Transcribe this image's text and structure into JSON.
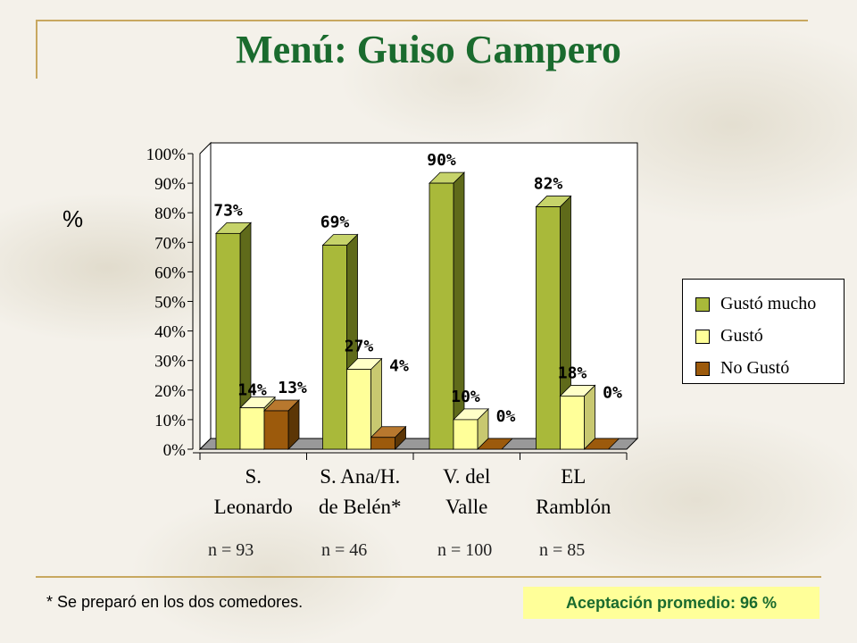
{
  "slide": {
    "title": "Menú: Guiso Campero",
    "ylabel": "%",
    "footnote": "* Se preparó en los dos comedores.",
    "average": "Aceptación promedio: 96 %"
  },
  "colors": {
    "gusto_mucho": "#a9b93a",
    "gusto": "#ffff99",
    "no_gusto": "#9c5a0c",
    "title": "#1a6b2e",
    "accent_line": "#c8a860"
  },
  "chart_data": {
    "type": "bar",
    "title": "",
    "ylabel": "%",
    "ylim": [
      0,
      100
    ],
    "yticks": [
      "0%",
      "10%",
      "20%",
      "30%",
      "40%",
      "50%",
      "60%",
      "70%",
      "80%",
      "90%",
      "100%"
    ],
    "categories": [
      [
        "S.",
        "Leonardo"
      ],
      [
        "S. Ana/H.",
        "de Belén*"
      ],
      [
        "V. del",
        "Valle"
      ],
      [
        "EL",
        "Ramblón"
      ]
    ],
    "n_labels": [
      "n = 93",
      "n = 46",
      "n = 100",
      "n = 85"
    ],
    "series": [
      {
        "name": "Gustó mucho",
        "values": [
          73,
          69,
          90,
          82
        ],
        "labels": [
          "73%",
          "69%",
          "90%",
          "82%"
        ]
      },
      {
        "name": "Gustó",
        "values": [
          14,
          27,
          10,
          18
        ],
        "labels": [
          "14%",
          "27%",
          "10%",
          "18%"
        ]
      },
      {
        "name": "No Gustó",
        "values": [
          13,
          4,
          0,
          0
        ],
        "labels": [
          "13%",
          "4%",
          "0%",
          "0%"
        ]
      }
    ],
    "legend_position": "right"
  }
}
